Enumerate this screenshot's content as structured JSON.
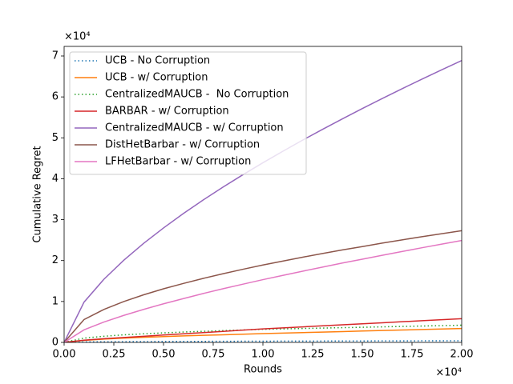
{
  "chart_data": {
    "type": "line",
    "xlabel": "Rounds",
    "ylabel": "Cumulative Regret",
    "x_offset_text": "×10⁴",
    "y_offset_text": "×10⁴",
    "x": [
      0,
      1000,
      2000,
      3000,
      4000,
      5000,
      6000,
      7000,
      8000,
      9000,
      10000,
      11000,
      12000,
      13000,
      14000,
      15000,
      16000,
      17000,
      18000,
      19000,
      20000
    ],
    "xlim": [
      0,
      20000
    ],
    "ylim": [
      0,
      72345
    ],
    "xticks": [
      {
        "value": 0,
        "label": "0.00"
      },
      {
        "value": 2500,
        "label": "0.25"
      },
      {
        "value": 5000,
        "label": "0.50"
      },
      {
        "value": 7500,
        "label": "0.75"
      },
      {
        "value": 10000,
        "label": "1.00"
      },
      {
        "value": 12500,
        "label": "1.25"
      },
      {
        "value": 15000,
        "label": "1.50"
      },
      {
        "value": 17500,
        "label": "1.75"
      },
      {
        "value": 20000,
        "label": "2.00"
      }
    ],
    "yticks": [
      0,
      {
        "value": 10000,
        "label": "1"
      },
      {
        "value": 20000,
        "label": "2"
      },
      {
        "value": 30000,
        "label": "3"
      },
      {
        "value": 40000,
        "label": "4"
      },
      {
        "value": 50000,
        "label": "5"
      },
      {
        "value": 60000,
        "label": "6"
      },
      {
        "value": 70000,
        "label": "7"
      }
    ],
    "grid": false,
    "legend": "upper left",
    "series": [
      {
        "name": "UCB - No Corruption",
        "color": "#1f77b4",
        "linestyle": "dotted",
        "values": [
          0,
          120,
          150,
          180,
          200,
          220,
          240,
          255,
          270,
          285,
          300,
          310,
          320,
          330,
          340,
          350,
          360,
          370,
          380,
          390,
          400
        ]
      },
      {
        "name": "UCB - w/ Corruption",
        "color": "#ff7f0e",
        "linestyle": "solid",
        "values": [
          0,
          500,
          800,
          1050,
          1250,
          1420,
          1580,
          1730,
          1870,
          2010,
          2150,
          2275,
          2400,
          2525,
          2650,
          2775,
          2900,
          3025,
          3150,
          3275,
          3400
        ]
      },
      {
        "name": "CentralizedMAUCB -  No Corruption",
        "color": "#2ca02c",
        "linestyle": "dotted",
        "values": [
          0,
          1050,
          1500,
          1850,
          2100,
          2330,
          2530,
          2710,
          2880,
          3040,
          3200,
          3300,
          3400,
          3500,
          3600,
          3700,
          3800,
          3900,
          4000,
          4100,
          4200
        ]
      },
      {
        "name": "BARBAR - w/ Corruption",
        "color": "#d62728",
        "linestyle": "solid",
        "values": [
          0,
          550,
          900,
          1200,
          1500,
          1800,
          2100,
          2400,
          2700,
          3000,
          3300,
          3550,
          3800,
          4050,
          4300,
          4550,
          4800,
          5050,
          5300,
          5550,
          5800
        ]
      },
      {
        "name": "CentralizedMAUCB - w/ Corruption",
        "color": "#9467bd",
        "linestyle": "solid",
        "values": [
          0,
          9830,
          15430,
          20080,
          24210,
          27970,
          31500,
          34820,
          37980,
          41000,
          43910,
          46710,
          49440,
          52070,
          54640,
          57150,
          59600,
          62000,
          64340,
          66640,
          68900
        ]
      },
      {
        "name": "DistHetBarbar - w/ Corruption",
        "color": "#8c564b",
        "linestyle": "solid",
        "values": [
          0,
          5570,
          8050,
          9990,
          11630,
          13100,
          14410,
          15640,
          16790,
          17880,
          18920,
          19870,
          20830,
          21730,
          22600,
          23420,
          24270,
          25060,
          25830,
          26560,
          27300
        ]
      },
      {
        "name": "LFHetBarbar - w/ Corruption",
        "color": "#e377c2",
        "linestyle": "solid",
        "values": [
          0,
          3060,
          4980,
          6600,
          8070,
          9440,
          10710,
          11950,
          13120,
          14240,
          15340,
          16380,
          17410,
          18400,
          19400,
          20340,
          21290,
          22210,
          23130,
          24030,
          24900
        ]
      }
    ]
  }
}
